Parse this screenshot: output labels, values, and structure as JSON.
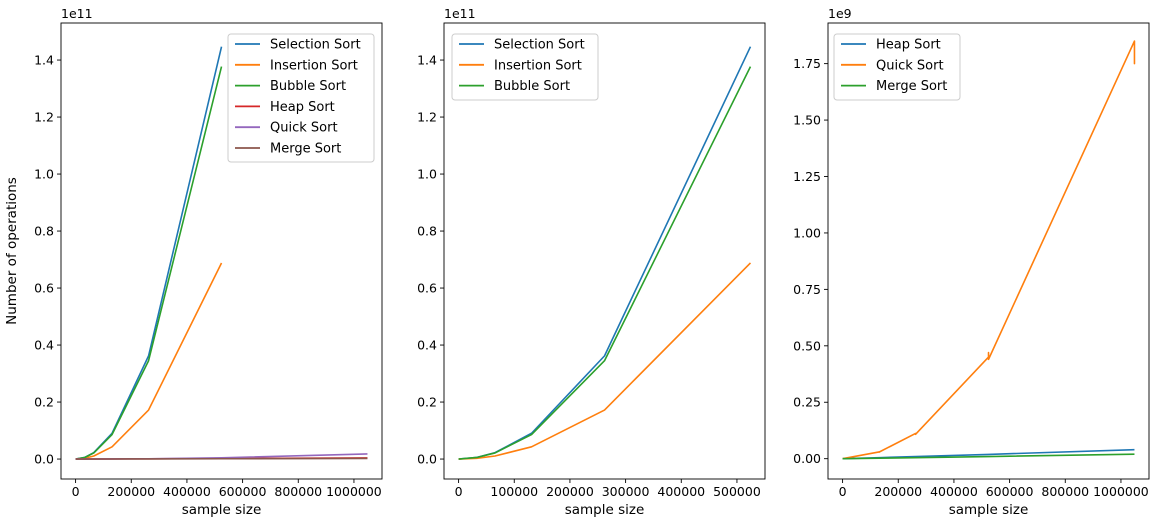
{
  "colors": {
    "blue": "#1f77b4",
    "orange": "#ff7f0e",
    "green": "#2ca02c",
    "red": "#d62728",
    "purple": "#9467bd",
    "brown": "#8c564b"
  },
  "chart_data": [
    {
      "type": "line",
      "title": "",
      "xlabel": "sample size",
      "ylabel": "Number of operations",
      "y_offset_label": "1e11",
      "y_scale": 100000000000,
      "xlim": [
        -52400,
        1100800
      ],
      "ylim": [
        -0.07,
        1.53
      ],
      "x_ticks": [
        0,
        200000,
        400000,
        600000,
        800000,
        1000000
      ],
      "x_tick_labels": [
        "0",
        "200000",
        "400000",
        "600000",
        "800000",
        "1000000"
      ],
      "y_ticks": [
        0.0,
        0.2,
        0.4,
        0.6,
        0.8,
        1.0,
        1.2,
        1.4
      ],
      "y_tick_labels": [
        "0.0",
        "0.2",
        "0.4",
        "0.6",
        "0.8",
        "1.0",
        "1.2",
        "1.4"
      ],
      "legend_position": "top-right",
      "grid": false,
      "series": [
        {
          "name": "Selection Sort",
          "color": "blue",
          "x": [
            0,
            32768,
            65536,
            131072,
            262144,
            524288
          ],
          "y": [
            0,
            0.0058,
            0.0226,
            0.0905,
            0.362,
            1.447
          ]
        },
        {
          "name": "Insertion Sort",
          "color": "orange",
          "x": [
            0,
            32768,
            65536,
            131072,
            262144,
            524288
          ],
          "y": [
            0,
            0.0027,
            0.0107,
            0.043,
            0.172,
            0.688
          ]
        },
        {
          "name": "Bubble Sort",
          "color": "green",
          "x": [
            0,
            32768,
            65536,
            131072,
            262144,
            524288
          ],
          "y": [
            0,
            0.0055,
            0.0215,
            0.086,
            0.345,
            1.377
          ]
        },
        {
          "name": "Heap Sort",
          "color": "red",
          "x": [
            0,
            131072,
            262144,
            524288,
            1048576
          ],
          "y": [
            0,
            0.0004,
            0.0009,
            0.0019,
            0.004
          ]
        },
        {
          "name": "Quick Sort",
          "color": "purple",
          "x": [
            0,
            131072,
            262144,
            524288,
            1048576
          ],
          "y": [
            0,
            0.0003,
            0.0011,
            0.0046,
            0.018
          ]
        },
        {
          "name": "Merge Sort",
          "color": "brown",
          "x": [
            0,
            131072,
            262144,
            524288,
            1048576
          ],
          "y": [
            0,
            0.0002,
            0.0005,
            0.001,
            0.002
          ]
        }
      ]
    },
    {
      "type": "line",
      "title": "",
      "xlabel": "sample size",
      "ylabel": "",
      "y_offset_label": "1e11",
      "y_scale": 100000000000,
      "xlim": [
        -26200,
        550400
      ],
      "ylim": [
        -0.07,
        1.53
      ],
      "x_ticks": [
        0,
        100000,
        200000,
        300000,
        400000,
        500000
      ],
      "x_tick_labels": [
        "0",
        "100000",
        "200000",
        "300000",
        "400000",
        "500000"
      ],
      "y_ticks": [
        0.0,
        0.2,
        0.4,
        0.6,
        0.8,
        1.0,
        1.2,
        1.4
      ],
      "y_tick_labels": [
        "0.0",
        "0.2",
        "0.4",
        "0.6",
        "0.8",
        "1.0",
        "1.2",
        "1.4"
      ],
      "legend_position": "top-left",
      "grid": false,
      "series": [
        {
          "name": "Selection Sort",
          "color": "blue",
          "x": [
            0,
            32768,
            65536,
            131072,
            262144,
            524288
          ],
          "y": [
            0,
            0.0058,
            0.0226,
            0.0905,
            0.362,
            1.447
          ]
        },
        {
          "name": "Insertion Sort",
          "color": "orange",
          "x": [
            0,
            32768,
            65536,
            131072,
            262144,
            524288
          ],
          "y": [
            0,
            0.0027,
            0.0107,
            0.043,
            0.172,
            0.688
          ]
        },
        {
          "name": "Bubble Sort",
          "color": "green",
          "x": [
            0,
            32768,
            65536,
            131072,
            262144,
            524288
          ],
          "y": [
            0,
            0.0055,
            0.0215,
            0.086,
            0.345,
            1.377
          ]
        }
      ]
    },
    {
      "type": "line",
      "title": "",
      "xlabel": "sample size",
      "ylabel": "",
      "y_offset_label": "1e9",
      "y_scale": 1000000000,
      "xlim": [
        -52400,
        1100800
      ],
      "ylim": [
        -0.09,
        1.93
      ],
      "x_ticks": [
        0,
        200000,
        400000,
        600000,
        800000,
        1000000
      ],
      "x_tick_labels": [
        "0",
        "200000",
        "400000",
        "600000",
        "800000",
        "1000000"
      ],
      "y_ticks": [
        0.0,
        0.25,
        0.5,
        0.75,
        1.0,
        1.25,
        1.5,
        1.75
      ],
      "y_tick_labels": [
        "0.00",
        "0.25",
        "0.50",
        "0.75",
        "1.00",
        "1.25",
        "1.50",
        "1.75"
      ],
      "legend_position": "top-left",
      "grid": false,
      "series": [
        {
          "name": "Heap Sort",
          "color": "blue",
          "x": [
            0,
            131072,
            262144,
            524288,
            1048576
          ],
          "y": [
            0,
            0.0045,
            0.0095,
            0.019,
            0.04
          ]
        },
        {
          "name": "Quick Sort",
          "color": "orange",
          "x": [
            0,
            131072,
            131072,
            262144,
            262144,
            524288,
            524288,
            524288,
            1048576,
            1048576,
            1048576
          ],
          "y": [
            0,
            0.03,
            0.029,
            0.112,
            0.108,
            0.45,
            0.47,
            0.44,
            1.85,
            1.75,
            1.82
          ]
        },
        {
          "name": "Merge Sort",
          "color": "green",
          "x": [
            0,
            131072,
            262144,
            524288,
            1048576
          ],
          "y": [
            0,
            0.002,
            0.0045,
            0.0095,
            0.02
          ]
        }
      ]
    }
  ]
}
